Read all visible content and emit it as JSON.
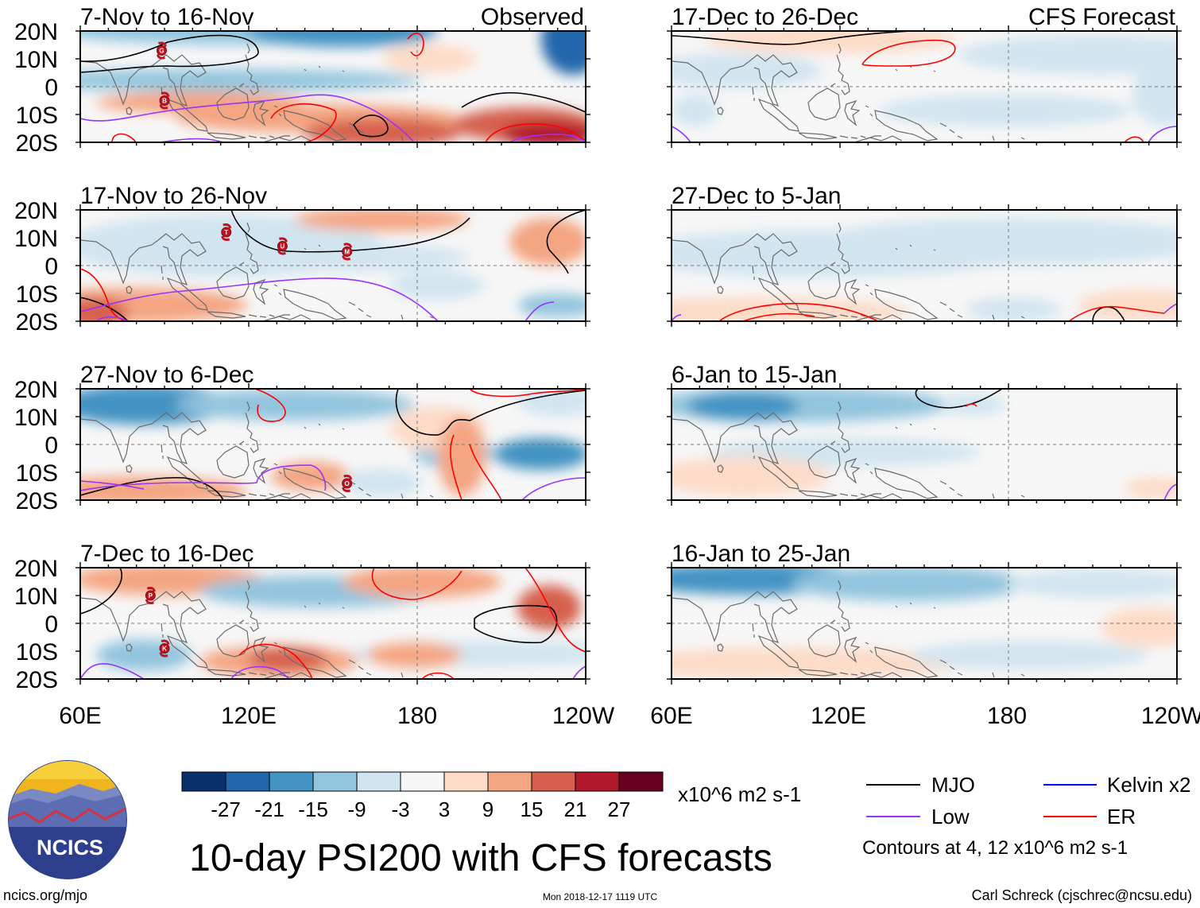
{
  "labels": {
    "observed": "Observed",
    "forecast": "CFS Forecast"
  },
  "lat_labels": [
    "20N",
    "10N",
    "0",
    "10S",
    "20S"
  ],
  "lon_labels": [
    "60E",
    "120E",
    "180",
    "120W"
  ],
  "panels": {
    "left": [
      {
        "period": "7-Nov to 16-Nov"
      },
      {
        "period": "17-Nov to 26-Nov"
      },
      {
        "period": "27-Nov to 6-Dec"
      },
      {
        "period": "7-Dec to 16-Dec"
      }
    ],
    "right": [
      {
        "period": "17-Dec to 26-Dec"
      },
      {
        "period": "27-Dec to 5-Jan"
      },
      {
        "period": "6-Jan to 15-Jan"
      },
      {
        "period": "16-Jan to 25-Jan"
      }
    ]
  },
  "storm_markers": [
    {
      "panel": 0,
      "letter": "G",
      "lon": 89,
      "lat": 13
    },
    {
      "panel": 0,
      "letter": "B",
      "lon": 90,
      "lat": -5
    },
    {
      "panel": 1,
      "letter": "T",
      "lon": 112,
      "lat": 12
    },
    {
      "panel": 1,
      "letter": "U",
      "lon": 132,
      "lat": 7
    },
    {
      "panel": 1,
      "letter": "M",
      "lon": 155,
      "lat": 5
    },
    {
      "panel": 2,
      "letter": "O",
      "lon": 155,
      "lat": -14
    },
    {
      "panel": 3,
      "letter": "P",
      "lon": 85,
      "lat": 10
    },
    {
      "panel": 3,
      "letter": "K",
      "lon": 90,
      "lat": -9
    }
  ],
  "colorbar": {
    "colors": [
      "#08306b",
      "#2166ac",
      "#4393c3",
      "#92c5de",
      "#d1e5f0",
      "#f7f7f7",
      "#fddbc7",
      "#f4a582",
      "#d6604d",
      "#b2182b",
      "#67001f"
    ],
    "ticks": [
      "-27",
      "-21",
      "-15",
      "-9",
      "-3",
      "3",
      "9",
      "15",
      "21",
      "27"
    ],
    "units": "x10^6 m2 s-1"
  },
  "legend": {
    "items": [
      {
        "label": "MJO",
        "color": "#000000"
      },
      {
        "label": "Kelvin x2",
        "color": "#0000ff"
      },
      {
        "label": "Low",
        "color": "#9933ff"
      },
      {
        "label": "ER",
        "color": "#ff0000"
      }
    ],
    "contours_note": "Contours at 4, 12 x10^6 m2 s-1"
  },
  "title": "10-day PSI200 with CFS forecasts",
  "logo": {
    "text": "NCICS"
  },
  "footer": {
    "url": "ncics.org/mjo",
    "timestamp": "Mon 2018-12-17 1119 UTC",
    "credit": "Carl Schreck (cjschrec@ncsu.edu)"
  }
}
